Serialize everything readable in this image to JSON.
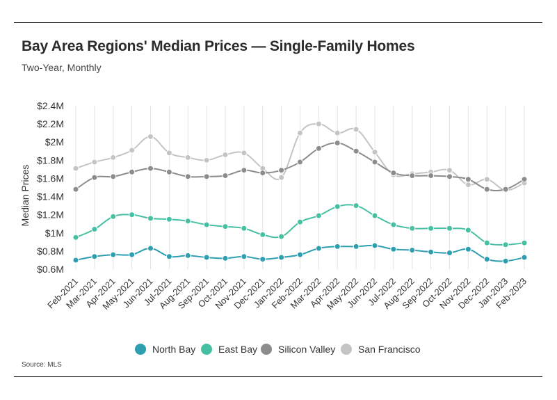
{
  "header": {
    "title": "Bay Area Regions' Median Prices — Single-Family Homes",
    "subtitle": "Two-Year, Monthly"
  },
  "footer": {
    "source": "Source:  MLS"
  },
  "chart_data": {
    "type": "line",
    "title": "Bay Area Regions' Median Prices — Single-Family Homes",
    "subtitle": "Two-Year, Monthly",
    "xlabel": "",
    "ylabel": "Median Prices",
    "ylim": [
      0.6,
      2.4
    ],
    "yunit": "$M",
    "ytick_values": [
      0.6,
      0.8,
      1.0,
      1.2,
      1.4,
      1.6,
      1.8,
      2.0,
      2.2,
      2.4
    ],
    "ytick_labels": [
      "$0.6M",
      "$0.8M",
      "$1M",
      "$1.2M",
      "$1.4M",
      "$1.6M",
      "$1.8M",
      "$2M",
      "$2.2M",
      "$2.4M"
    ],
    "grid": "vertical",
    "legend_position": "bottom",
    "categories": [
      "Feb-2021",
      "Mar-2021",
      "Apr-2021",
      "May-2021",
      "Jun-2021",
      "Jul-2021",
      "Aug-2021",
      "Sep-2021",
      "Oct-2021",
      "Nov-2021",
      "Dec-2021",
      "Jan-2022",
      "Feb-2022",
      "Mar-2022",
      "Apr-2022",
      "May-2022",
      "Jun-2022",
      "Jul-2022",
      "Aug-2022",
      "Sep-2022",
      "Oct-2022",
      "Nov-2022",
      "Dec-2022",
      "Jan-2023",
      "Feb-2023"
    ],
    "series": [
      {
        "name": "North Bay",
        "color": "#2e9fb0",
        "values": [
          0.7,
          0.74,
          0.76,
          0.76,
          0.83,
          0.74,
          0.75,
          0.73,
          0.72,
          0.74,
          0.71,
          0.73,
          0.76,
          0.83,
          0.85,
          0.85,
          0.86,
          0.82,
          0.81,
          0.79,
          0.78,
          0.82,
          0.71,
          0.69,
          0.73
        ]
      },
      {
        "name": "East Bay",
        "color": "#45c0a3",
        "values": [
          0.95,
          1.04,
          1.18,
          1.2,
          1.16,
          1.15,
          1.13,
          1.09,
          1.07,
          1.05,
          0.98,
          0.96,
          1.12,
          1.19,
          1.29,
          1.3,
          1.19,
          1.09,
          1.05,
          1.05,
          1.05,
          1.03,
          0.89,
          0.87,
          0.89
        ]
      },
      {
        "name": "Silicon Valley",
        "color": "#8c8c8c",
        "values": [
          1.48,
          1.61,
          1.62,
          1.67,
          1.71,
          1.67,
          1.62,
          1.62,
          1.63,
          1.69,
          1.66,
          1.69,
          1.78,
          1.93,
          1.99,
          1.9,
          1.78,
          1.66,
          1.63,
          1.63,
          1.62,
          1.59,
          1.48,
          1.48,
          1.59
        ]
      },
      {
        "name": "San Francisco",
        "color": "#c4c4c4",
        "values": [
          1.71,
          1.78,
          1.83,
          1.91,
          2.06,
          1.88,
          1.83,
          1.8,
          1.86,
          1.88,
          1.71,
          1.61,
          2.1,
          2.2,
          2.1,
          2.14,
          1.89,
          1.64,
          1.65,
          1.67,
          1.69,
          1.53,
          1.59,
          1.47,
          1.55
        ]
      }
    ]
  }
}
